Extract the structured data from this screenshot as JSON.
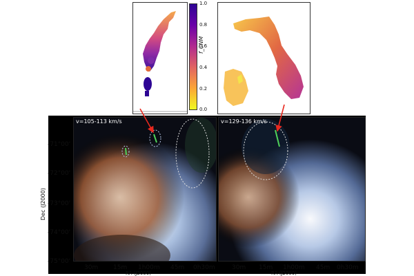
{
  "insets": {
    "colorbar": {
      "label": "f_CNM",
      "ticks": [
        "1.0",
        "0.8",
        "0.6",
        "0.4",
        "0.2",
        "0.0"
      ],
      "colors": [
        "#2d0594",
        "#6a00a8",
        "#b12a90",
        "#e16462",
        "#fca636",
        "#f0f921"
      ]
    }
  },
  "panels": [
    {
      "velocity_label": "v=105-113 km/s"
    },
    {
      "velocity_label": "v=129-136 km/s"
    }
  ],
  "axes": {
    "y_label": "Dec (J2000)",
    "y_ticks": [
      "-71°00'",
      "-72°00'",
      "-73°00'",
      "-74°00'",
      "-75°00'"
    ],
    "x_label": "RA (J2000)",
    "x_ticks": [
      "30m",
      "15m",
      "1h00m",
      "45m",
      "0h30m"
    ]
  },
  "colors": {
    "arrow": "#e8281e",
    "ellipse": "#dddddd"
  }
}
